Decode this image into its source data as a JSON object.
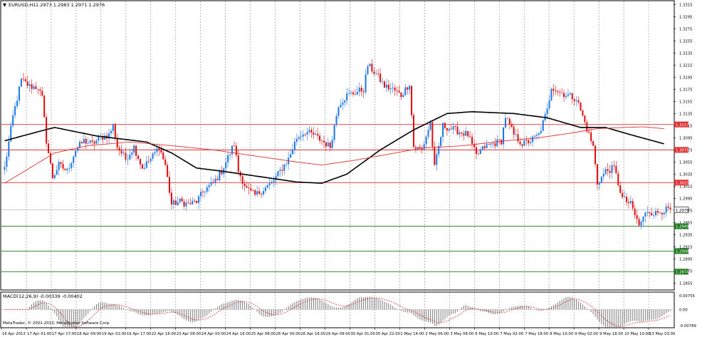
{
  "header": {
    "symbol": "EURUSD,H1",
    "ohlc": "1.2973 1.2983 1.2971 1.2976"
  },
  "copyright": "MetaTrader, © 2001-2013, MetaQuotes Software Corp.",
  "colors": {
    "bull": "#1e78e6",
    "bear": "#e01010",
    "ma_fast": "#000000",
    "ma_slow": "#e03030",
    "resistance": "#e03030",
    "support": "#1e7a1e",
    "grid": "#8a8a8a",
    "macd_bars": "#7a7a7a",
    "macd_signal": "#e03030"
  },
  "chart_data": [
    {
      "type": "line",
      "panel": "price",
      "subtype": "candlestick",
      "title": "EURUSD,H1",
      "ylim": [
        1.2845,
        1.332
      ],
      "y_ticks": [
        "1.3315",
        "1.3295",
        "1.3275",
        "1.3255",
        "1.3235",
        "1.3215",
        "1.3195",
        "1.3175",
        "1.3155",
        "1.3135",
        "1.3115",
        "1.3095",
        "1.3075",
        "1.3055",
        "1.3035",
        "1.3015",
        "1.2995",
        "1.2975",
        "1.2955",
        "1.2935",
        "1.2915",
        "1.2895",
        "1.2875",
        "1.2855"
      ],
      "x_ticks": [
        "16 Apr 2013",
        "17 Apr 01:00",
        "17 Apr 17:00",
        "18 Apr 09:00",
        "19 Apr 01:00",
        "19 Apr 17:00",
        "22 Apr 16:00",
        "23 Apr 08:00",
        "24 Apr 00:00",
        "24 Apr 16:00",
        "25 Apr 08:00",
        "26 Apr 00:00",
        "26 Apr 16:00",
        "29 Apr 09:00",
        "30 Apr 01:00",
        "30 Apr 22:00",
        "1 May 14:00",
        "2 May 06:00",
        "3 May 08:00",
        "6 May 10:00",
        "7 May 02:00",
        "7 May 18:00",
        "8 May 10:00",
        "9 May 02:00",
        "9 May 18:00",
        "10 May 10:00",
        "13 May 03:00"
      ],
      "path_points": [
        [
          0,
          1.3045
        ],
        [
          4,
          1.313
        ],
        [
          8,
          1.319
        ],
        [
          12,
          1.318
        ],
        [
          16,
          1.3178
        ],
        [
          18,
          1.316
        ],
        [
          20,
          1.309
        ],
        [
          23,
          1.303
        ],
        [
          26,
          1.305
        ],
        [
          30,
          1.304
        ],
        [
          34,
          1.3075
        ],
        [
          38,
          1.309
        ],
        [
          42,
          1.3085
        ],
        [
          46,
          1.3095
        ],
        [
          50,
          1.31
        ],
        [
          52,
          1.3115
        ],
        [
          54,
          1.308
        ],
        [
          58,
          1.306
        ],
        [
          62,
          1.308
        ],
        [
          66,
          1.3045
        ],
        [
          70,
          1.306
        ],
        [
          74,
          1.308
        ],
        [
          77,
          1.305
        ],
        [
          80,
          1.2985
        ],
        [
          84,
          1.299
        ],
        [
          88,
          1.2985
        ],
        [
          92,
          1.299
        ],
        [
          96,
          1.301
        ],
        [
          100,
          1.302
        ],
        [
          104,
          1.304
        ],
        [
          108,
          1.307
        ],
        [
          110,
          1.3085
        ],
        [
          112,
          1.304
        ],
        [
          116,
          1.301
        ],
        [
          120,
          1.3
        ],
        [
          124,
          1.301
        ],
        [
          128,
          1.302
        ],
        [
          132,
          1.304
        ],
        [
          136,
          1.306
        ],
        [
          140,
          1.3095
        ],
        [
          144,
          1.3105
        ],
        [
          148,
          1.31
        ],
        [
          152,
          1.309
        ],
        [
          156,
          1.308
        ],
        [
          160,
          1.315
        ],
        [
          164,
          1.3165
        ],
        [
          168,
          1.317
        ],
        [
          172,
          1.3175
        ],
        [
          174,
          1.3215
        ],
        [
          178,
          1.32
        ],
        [
          182,
          1.318
        ],
        [
          186,
          1.3175
        ],
        [
          190,
          1.3165
        ],
        [
          194,
          1.3185
        ],
        [
          196,
          1.308
        ],
        [
          200,
          1.3075
        ],
        [
          204,
          1.312
        ],
        [
          206,
          1.3045
        ],
        [
          210,
          1.3115
        ],
        [
          214,
          1.311
        ],
        [
          218,
          1.3105
        ],
        [
          222,
          1.31
        ],
        [
          226,
          1.3065
        ],
        [
          230,
          1.308
        ],
        [
          234,
          1.3085
        ],
        [
          238,
          1.309
        ],
        [
          240,
          1.313
        ],
        [
          244,
          1.31
        ],
        [
          248,
          1.3085
        ],
        [
          252,
          1.309
        ],
        [
          256,
          1.31
        ],
        [
          260,
          1.314
        ],
        [
          262,
          1.318
        ],
        [
          266,
          1.317
        ],
        [
          270,
          1.3165
        ],
        [
          274,
          1.316
        ],
        [
          278,
          1.312
        ],
        [
          282,
          1.308
        ],
        [
          284,
          1.302
        ],
        [
          288,
          1.304
        ],
        [
          292,
          1.3045
        ],
        [
          296,
          1.2995
        ],
        [
          300,
          1.2985
        ],
        [
          304,
          1.295
        ],
        [
          308,
          1.2975
        ],
        [
          312,
          1.297
        ],
        [
          316,
          1.2976
        ]
      ],
      "series": [
        {
          "name": "MA fast",
          "points": [
            [
              0,
              1.309
            ],
            [
              16,
              1.3105
            ],
            [
              24,
              1.3112
            ],
            [
              44,
              1.3098
            ],
            [
              68,
              1.3088
            ],
            [
              80,
              1.307
            ],
            [
              92,
              1.3045
            ],
            [
              104,
              1.304
            ],
            [
              120,
              1.3032
            ],
            [
              140,
              1.3022
            ],
            [
              152,
              1.302
            ],
            [
              164,
              1.3035
            ],
            [
              180,
              1.3075
            ],
            [
              196,
              1.3108
            ],
            [
              212,
              1.3135
            ],
            [
              224,
              1.3138
            ],
            [
              244,
              1.3135
            ],
            [
              260,
              1.3128
            ],
            [
              276,
              1.3112
            ],
            [
              288,
              1.3112
            ],
            [
              300,
              1.31
            ],
            [
              316,
              1.3085
            ]
          ]
        },
        {
          "name": "MA slow",
          "points": [
            [
              0,
              1.302
            ],
            [
              12,
              1.3045
            ],
            [
              24,
              1.307
            ],
            [
              40,
              1.3082
            ],
            [
              60,
              1.3088
            ],
            [
              80,
              1.3082
            ],
            [
              100,
              1.3075
            ],
            [
              120,
              1.3065
            ],
            [
              140,
              1.3055
            ],
            [
              152,
              1.305
            ],
            [
              168,
              1.3058
            ],
            [
              184,
              1.3068
            ],
            [
              200,
              1.3078
            ],
            [
              220,
              1.3082
            ],
            [
              240,
              1.309
            ],
            [
              256,
              1.3095
            ],
            [
              270,
              1.3102
            ],
            [
              284,
              1.311
            ],
            [
              296,
              1.3112
            ],
            [
              306,
              1.3113
            ],
            [
              316,
              1.311
            ]
          ]
        }
      ],
      "levels": [
        {
          "label": "1.3117",
          "value": 1.3117,
          "kind": "resistance"
        },
        {
          "label": "1.3075",
          "value": 1.3075,
          "kind": "resistance"
        },
        {
          "label": "1.3021",
          "value": 1.3021,
          "kind": "resistance"
        },
        {
          "label": "1.2949",
          "value": 1.2949,
          "kind": "support"
        },
        {
          "label": "1.2908",
          "value": 1.2908,
          "kind": "support"
        },
        {
          "label": "1.2874",
          "value": 1.2874,
          "kind": "support"
        }
      ],
      "current_price": {
        "label": "1.2976",
        "value": 1.2976
      }
    },
    {
      "type": "bar",
      "panel": "macd",
      "label": "MACD(12,26,9) -0.00339 -0.00402",
      "ylim": [
        -0.0081,
        0.0077
      ],
      "y_ticks": [
        "0.00755",
        "0.00",
        "-0.00789"
      ]
    }
  ]
}
